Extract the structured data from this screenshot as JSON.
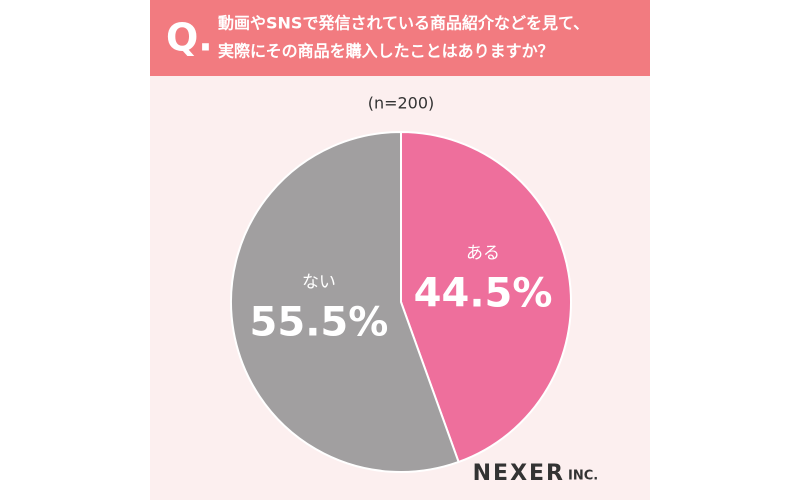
{
  "chart_data": {
    "type": "pie",
    "question_mark": "Q.",
    "title": [
      "動画やSNSで発信されている商品紹介などを見て、",
      "実際にその商品を購入したことはありますか？"
    ],
    "subtitle": "(n=200)",
    "categories": [
      "ある",
      "ない"
    ],
    "values": [
      44.5,
      55.5
    ],
    "value_labels": [
      "44.5%",
      "55.5%"
    ],
    "colors": [
      "#ee6f9c",
      "#a19fa0"
    ],
    "logo": [
      "NEXER",
      "INC."
    ]
  }
}
